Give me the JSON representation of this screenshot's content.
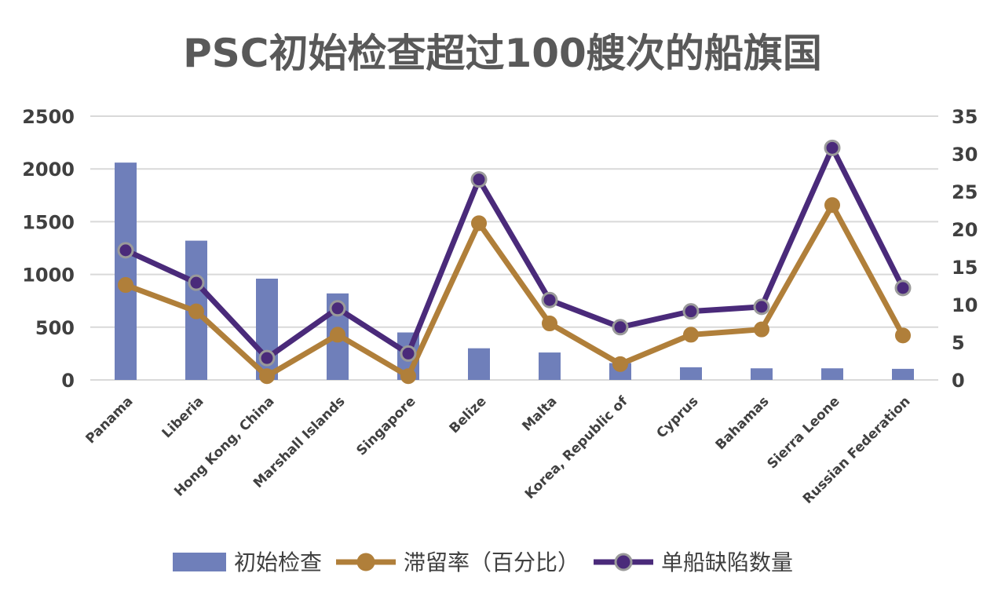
{
  "chart_data": {
    "type": "bar",
    "title": "PSC初始检查超过100艘次的船旗国",
    "categories": [
      "Panama",
      "Liberia",
      "Hong Kong, China",
      "Marshall Islands",
      "Singapore",
      "Belize",
      "Malta",
      "Korea, Republic of",
      "Cyprus",
      "Bahamas",
      "Sierra Leone",
      "Russian Federation"
    ],
    "y_left": {
      "min": 0,
      "max": 2500,
      "ticks": [
        0,
        500,
        1000,
        1500,
        2000,
        2500
      ]
    },
    "y_right": {
      "min": 0,
      "max": 35,
      "ticks": [
        0,
        5,
        10,
        15,
        20,
        25,
        30,
        35
      ]
    },
    "grid": true,
    "legend_position": "bottom",
    "series": [
      {
        "name": "初始检查",
        "kind": "bar",
        "axis": "left",
        "color": "#6f7fba",
        "values": [
          2060,
          1320,
          960,
          820,
          450,
          300,
          260,
          160,
          120,
          110,
          110,
          105
        ]
      },
      {
        "name": "滞留率（百分比）",
        "kind": "line",
        "axis": "right",
        "color": "#b07f3a",
        "values": [
          12.6,
          9.1,
          0.5,
          6.0,
          0.5,
          20.8,
          7.5,
          2.1,
          6.0,
          6.7,
          23.2,
          5.9
        ]
      },
      {
        "name": "单船缺陷数量",
        "kind": "line",
        "axis": "right",
        "color": "#4a2a7a",
        "values": [
          17.2,
          12.9,
          2.9,
          9.5,
          3.5,
          26.6,
          10.6,
          7.0,
          9.1,
          9.7,
          30.8,
          12.2
        ]
      }
    ]
  }
}
